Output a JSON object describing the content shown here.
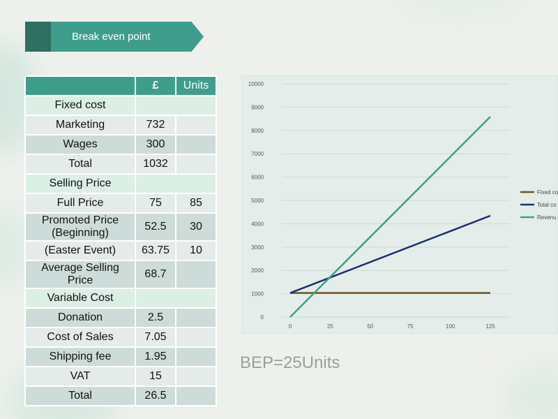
{
  "banner": {
    "title": "Break even point"
  },
  "table": {
    "headers": [
      "",
      "£",
      "Units"
    ],
    "rows": [
      {
        "kind": "sec",
        "cells": [
          "Fixed cost",
          "",
          ""
        ]
      },
      {
        "kind": "light",
        "cells": [
          "Marketing",
          "732",
          ""
        ]
      },
      {
        "kind": "dark",
        "cells": [
          "Wages",
          "300",
          ""
        ]
      },
      {
        "kind": "light",
        "cells": [
          "Total",
          "1032",
          ""
        ]
      },
      {
        "kind": "sec",
        "cells": [
          "Selling Price",
          "",
          ""
        ]
      },
      {
        "kind": "light",
        "cells": [
          "Full Price",
          "75",
          "85"
        ]
      },
      {
        "kind": "dark",
        "tall": true,
        "cells": [
          "Promoted Price (Beginning)",
          "52.5",
          "30"
        ]
      },
      {
        "kind": "light",
        "cells": [
          "(Easter Event)",
          "63.75",
          "10"
        ]
      },
      {
        "kind": "dark",
        "tall": true,
        "cells": [
          "Average Selling Price",
          "68.7",
          ""
        ]
      },
      {
        "kind": "sec",
        "cells": [
          "Variable Cost",
          "",
          ""
        ]
      },
      {
        "kind": "dark",
        "cells": [
          "Donation",
          "2.5",
          ""
        ]
      },
      {
        "kind": "light",
        "cells": [
          "Cost of Sales",
          "7.05",
          ""
        ]
      },
      {
        "kind": "dark",
        "cells": [
          "Shipping fee",
          "1.95",
          ""
        ]
      },
      {
        "kind": "light",
        "cells": [
          "VAT",
          "15",
          ""
        ]
      },
      {
        "kind": "dark",
        "cells": [
          "Total",
          "26.5",
          ""
        ]
      }
    ]
  },
  "bep_text": "BEP=25Units",
  "chart_data": {
    "type": "line",
    "x": [
      0,
      125
    ],
    "xticks": [
      0,
      25,
      50,
      75,
      100,
      125
    ],
    "yticks": [
      0,
      1000,
      2000,
      3000,
      4000,
      5000,
      6000,
      7000,
      8000,
      9000,
      10000
    ],
    "ylim": [
      0,
      10000
    ],
    "grid": true,
    "legend_position": "right",
    "series": [
      {
        "name": "Fixed co",
        "values": [
          1032,
          1032
        ],
        "color": "#6b5428"
      },
      {
        "name": "Total co",
        "values": [
          1032,
          4344.5
        ],
        "color": "#1c2e6e"
      },
      {
        "name": "Revenu",
        "values": [
          0,
          8587.5
        ],
        "color": "#3f9e8b"
      }
    ],
    "colors": {
      "plot_bg": "#e4ede9",
      "grid": "#cfd8d4",
      "axis": "#bfc8c4"
    }
  }
}
